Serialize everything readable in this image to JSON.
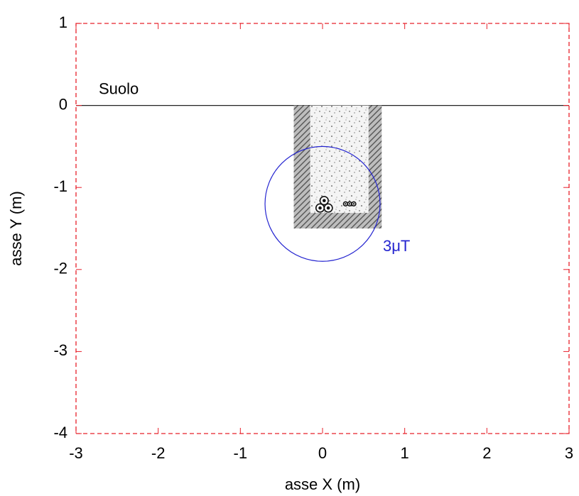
{
  "chart_data": {
    "type": "cross-section",
    "x_label": "asse X (m)",
    "y_label": "asse Y (m)",
    "xlim": [
      -3,
      3
    ],
    "ylim": [
      -4,
      1
    ],
    "xticks": [
      -3,
      -2,
      -1,
      0,
      1,
      2,
      3
    ],
    "yticks": [
      -4,
      -3,
      -2,
      -1,
      0,
      1
    ],
    "frame_color": "#e8202a",
    "ground": {
      "label": "Suolo",
      "y": 0
    },
    "trench": {
      "outer": {
        "x": [
          -0.35,
          0.72
        ],
        "y": [
          0,
          -1.5
        ]
      },
      "inner": {
        "x": [
          -0.15,
          0.56
        ],
        "y": [
          0,
          -1.31
        ]
      }
    },
    "cables": {
      "x": [
        -0.03,
        0.07,
        0.02,
        0.28,
        0.33,
        0.38
      ],
      "y": [
        -1.25,
        -1.25,
        -1.16,
        -1.2,
        -1.2,
        -1.2
      ],
      "r": [
        0.05,
        0.05,
        0.05,
        0.025,
        0.025,
        0.025
      ]
    },
    "contour": {
      "label": "3μT",
      "x": 0,
      "y": -1.2,
      "radius": 0.7,
      "color": "#2525d0"
    }
  }
}
